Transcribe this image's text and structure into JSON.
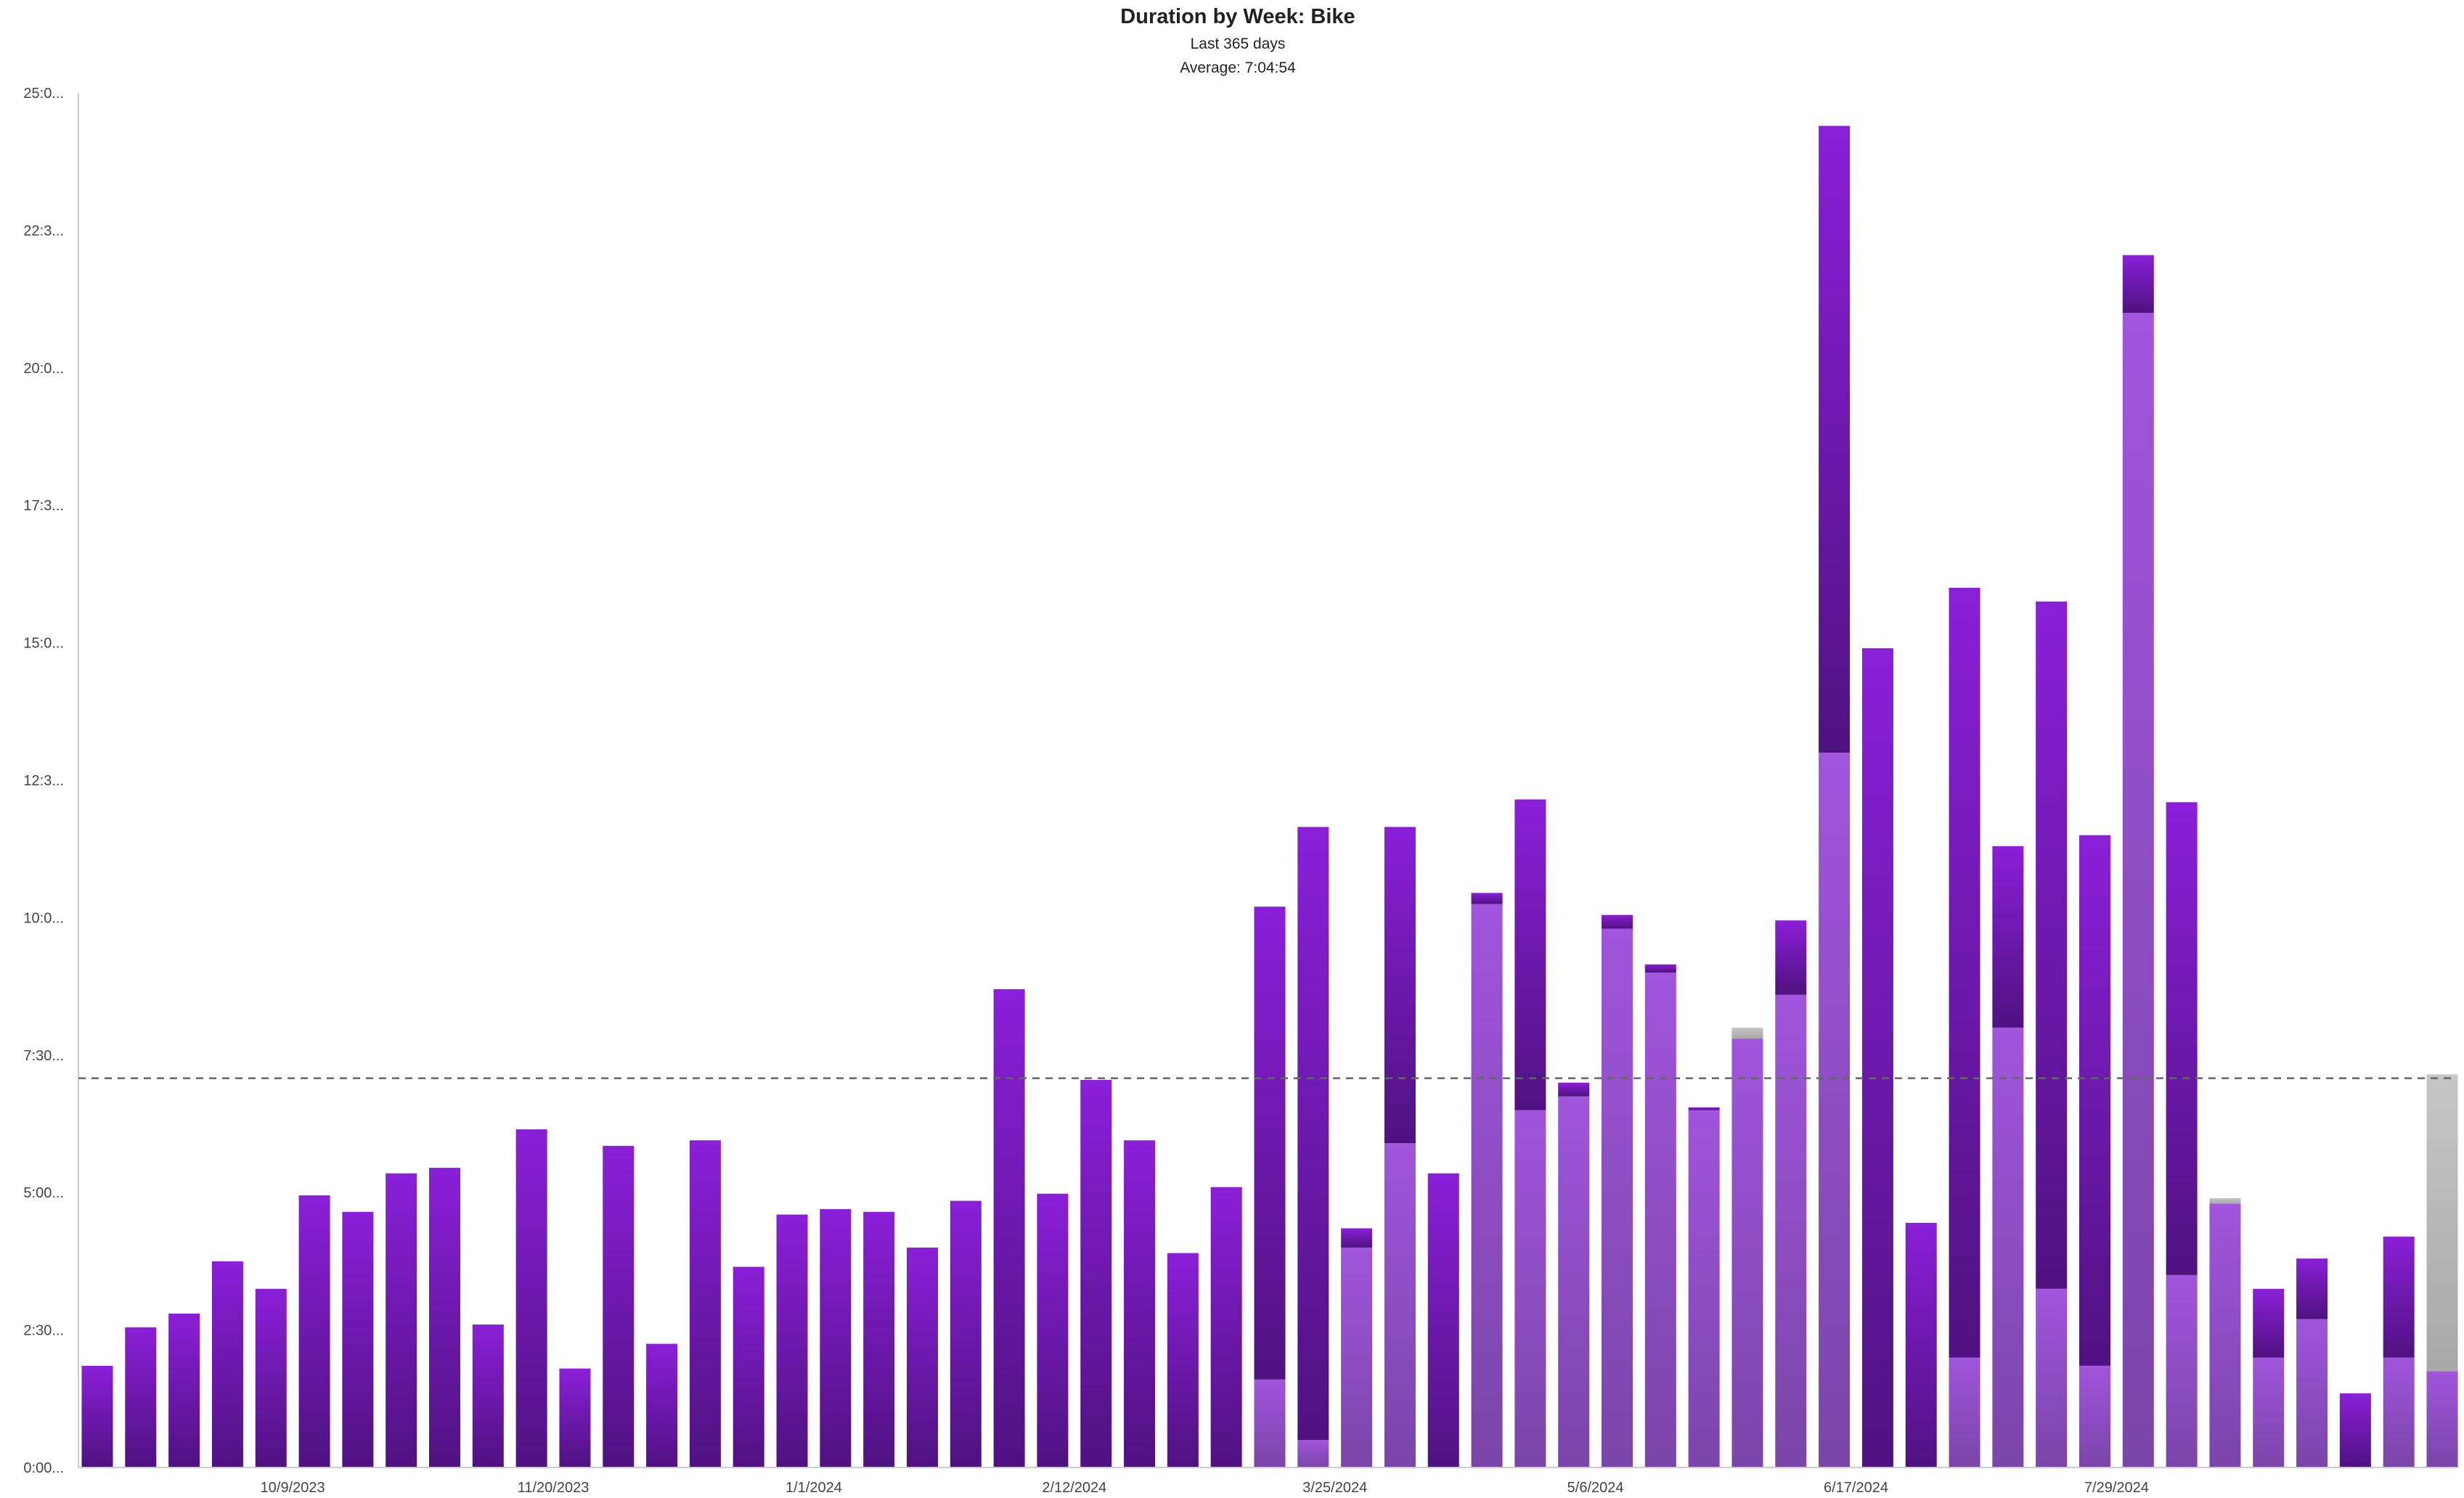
{
  "chart_data": {
    "type": "bar",
    "stacked": true,
    "title": "Duration by Week: Bike",
    "subtitle": "Last 365 days",
    "average_label": "Average: 7:04:54",
    "average_hours": 7.08,
    "y_tick_labels": [
      "0:00...",
      "2:30...",
      "5:00...",
      "7:30...",
      "10:0...",
      "12:3...",
      "15:0...",
      "17:3...",
      "20:0...",
      "22:3...",
      "25:0..."
    ],
    "ylim": [
      0,
      25
    ],
    "x_tick_labels": [
      {
        "index": 5,
        "label": "10/9/2023"
      },
      {
        "index": 11,
        "label": "11/20/2023"
      },
      {
        "index": 17,
        "label": "1/1/2024"
      },
      {
        "index": 23,
        "label": "2/12/2024"
      },
      {
        "index": 29,
        "label": "3/25/2024"
      },
      {
        "index": 35,
        "label": "5/6/2024"
      },
      {
        "index": 41,
        "label": "6/17/2024"
      },
      {
        "index": 47,
        "label": "7/29/2024"
      }
    ],
    "colors": {
      "dark_purple_top": "#8a1fd8",
      "dark_purple_bottom": "#4f1280",
      "light_purple_top": "#a055dc",
      "light_purple_bottom": "#7a45a8",
      "gray_top": "#c6c6c6",
      "gray_bottom": "#a8a8a8",
      "average_line": "#666666",
      "axis": "#cccccc"
    },
    "series": [
      {
        "key": "light",
        "values": [
          0,
          0,
          0,
          0,
          0,
          0,
          0,
          0,
          0,
          0,
          0,
          0,
          0,
          0,
          0,
          0,
          0,
          0,
          0,
          0,
          0,
          0,
          0,
          0,
          0,
          0,
          0,
          1.6,
          0.5,
          4.0,
          5.9,
          0,
          10.25,
          6.5,
          6.75,
          9.8,
          9.0,
          6.5,
          7.8,
          8.6,
          13.0,
          0,
          0,
          2.0,
          8.0,
          3.25,
          1.85,
          21.0,
          3.5,
          4.8,
          2.0,
          2.7,
          0,
          2.0,
          1.75
        ]
      },
      {
        "key": "dark",
        "values": [
          1.85,
          2.55,
          2.8,
          3.75,
          3.25,
          4.95,
          4.65,
          5.35,
          5.45,
          2.6,
          6.15,
          1.8,
          5.85,
          2.25,
          5.95,
          3.65,
          4.6,
          4.7,
          4.65,
          4.0,
          4.85,
          8.7,
          4.98,
          7.05,
          5.95,
          3.9,
          5.1,
          8.6,
          11.15,
          0.35,
          5.75,
          5.35,
          0.2,
          5.65,
          0.25,
          0.25,
          0.15,
          0.05,
          0,
          1.35,
          11.4,
          14.9,
          4.45,
          14.0,
          3.3,
          12.5,
          9.65,
          1.05,
          8.6,
          0,
          1.25,
          1.1,
          1.35,
          2.2,
          0
        ]
      },
      {
        "key": "gray",
        "values": [
          0,
          0,
          0,
          0,
          0,
          0,
          0,
          0,
          0,
          0,
          0,
          0,
          0,
          0,
          0,
          0,
          0,
          0,
          0,
          0,
          0,
          0,
          0,
          0,
          0,
          0,
          0,
          0,
          0,
          0,
          0,
          0,
          0,
          0,
          0,
          0,
          0,
          0,
          0.2,
          0,
          0,
          0,
          0,
          0,
          0,
          0,
          0,
          0,
          0,
          0.1,
          0,
          0,
          0,
          0,
          5.4
        ]
      }
    ]
  }
}
